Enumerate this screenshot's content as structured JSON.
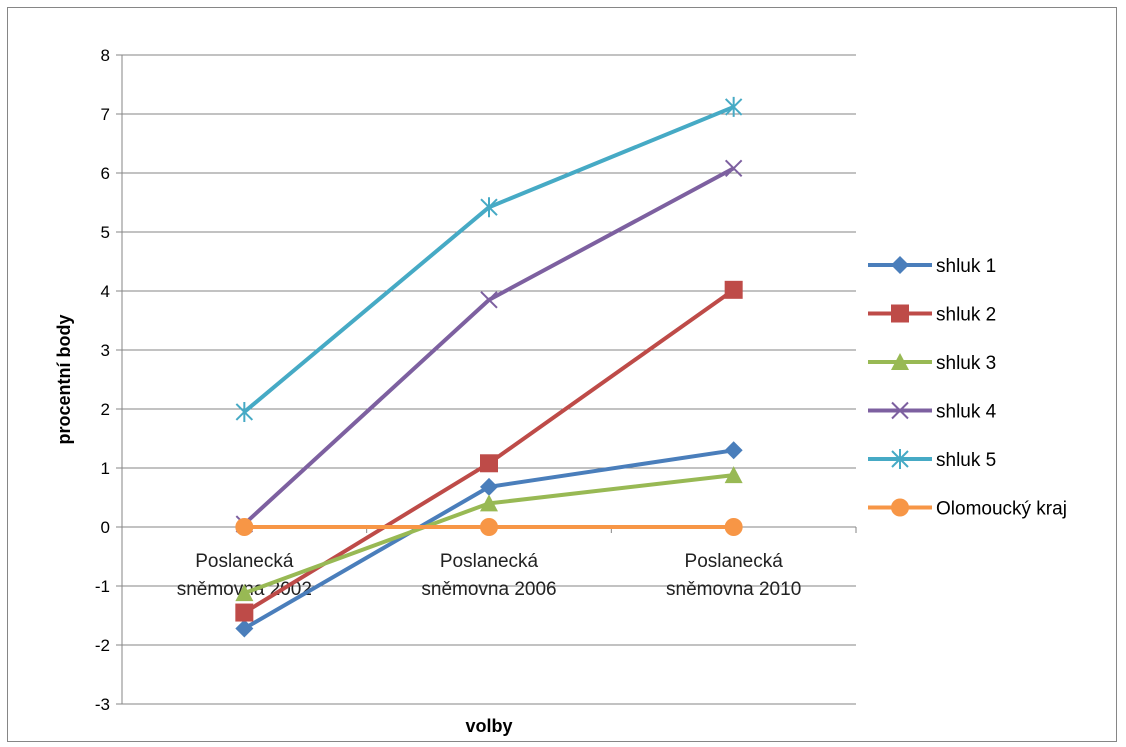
{
  "chart_data": {
    "type": "line",
    "xlabel": "volby",
    "ylabel": "procentní body",
    "ylim": [
      -3,
      8
    ],
    "yticks": [
      -3,
      -2,
      -1,
      0,
      1,
      2,
      3,
      4,
      5,
      6,
      7,
      8
    ],
    "categories": [
      [
        "Poslanecká",
        "sněmovna 2002"
      ],
      [
        "Poslanecká",
        "sněmovna 2006"
      ],
      [
        "Poslanecká",
        "sněmovna 2010"
      ]
    ],
    "grid": true,
    "legend_position": "right",
    "series": [
      {
        "name": "shluk 1",
        "color": "#4a7ebb",
        "marker": "diamond",
        "values": [
          -1.72,
          0.68,
          1.3
        ]
      },
      {
        "name": "shluk 2",
        "color": "#be4b48",
        "marker": "square",
        "values": [
          -1.45,
          1.08,
          4.02
        ]
      },
      {
        "name": "shluk 3",
        "color": "#98b954",
        "marker": "triangle",
        "values": [
          -1.12,
          0.4,
          0.88
        ]
      },
      {
        "name": "shluk 4",
        "color": "#7d60a0",
        "marker": "x",
        "values": [
          0.05,
          3.85,
          6.08
        ]
      },
      {
        "name": "shluk 5",
        "color": "#46aac5",
        "marker": "star",
        "values": [
          1.95,
          5.42,
          7.12
        ]
      },
      {
        "name": "Olomoucký kraj",
        "color": "#f79646",
        "marker": "circle",
        "values": [
          0,
          0,
          0
        ]
      }
    ]
  }
}
